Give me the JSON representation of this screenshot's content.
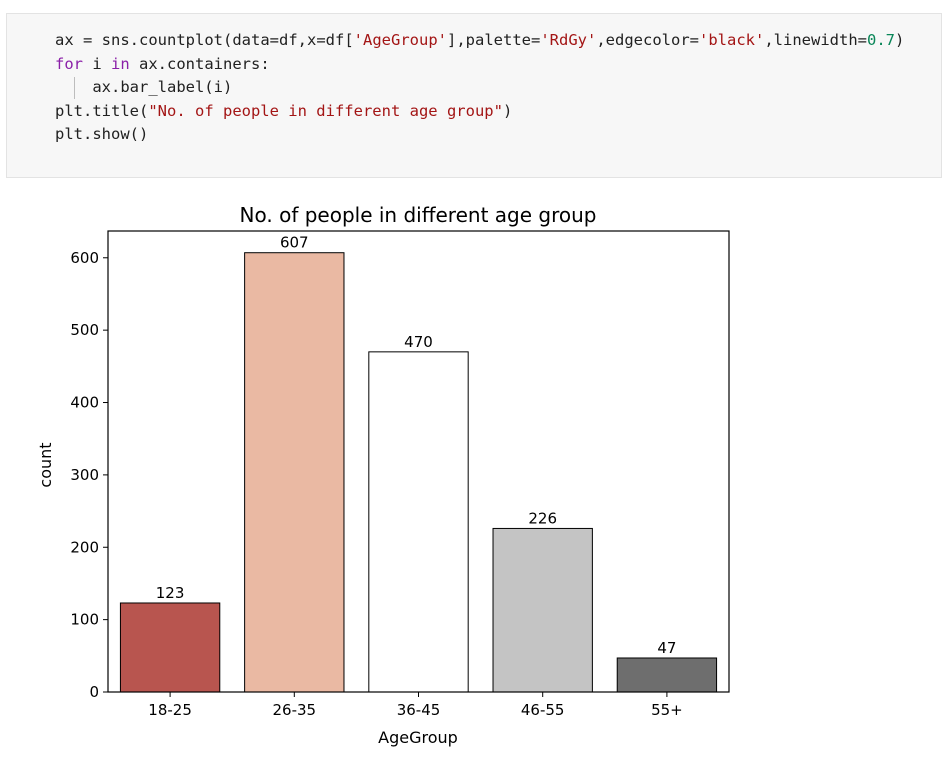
{
  "code_cell": {
    "lines": [
      [
        {
          "t": "ax ",
          "c": "plain"
        },
        {
          "t": "=",
          "c": "plain"
        },
        {
          "t": " sns.countplot(data",
          "c": "plain"
        },
        {
          "t": "=",
          "c": "plain"
        },
        {
          "t": "df,x",
          "c": "plain"
        },
        {
          "t": "=",
          "c": "plain"
        },
        {
          "t": "df[",
          "c": "plain"
        },
        {
          "t": "'AgeGroup'",
          "c": "str"
        },
        {
          "t": "],palette",
          "c": "plain"
        },
        {
          "t": "=",
          "c": "plain"
        },
        {
          "t": "'RdGy'",
          "c": "str"
        },
        {
          "t": ",edgecolor",
          "c": "plain"
        },
        {
          "t": "=",
          "c": "plain"
        },
        {
          "t": "'black'",
          "c": "str"
        },
        {
          "t": ",linewidth",
          "c": "plain"
        },
        {
          "t": "=",
          "c": "plain"
        },
        {
          "t": "0.7",
          "c": "num"
        },
        {
          "t": ")",
          "c": "plain"
        }
      ],
      [
        {
          "t": "for",
          "c": "kw"
        },
        {
          "t": " i ",
          "c": "plain"
        },
        {
          "t": "in",
          "c": "kw"
        },
        {
          "t": " ax.containers:",
          "c": "plain"
        }
      ],
      [
        {
          "t": "    ax.bar_label(i)",
          "c": "plain"
        }
      ],
      [
        {
          "t": "plt.title(",
          "c": "plain"
        },
        {
          "t": "\"No. of people in different age group\"",
          "c": "str"
        },
        {
          "t": ")",
          "c": "plain"
        }
      ],
      [
        {
          "t": "plt.show()",
          "c": "plain"
        }
      ]
    ],
    "colors": {
      "plain": "#212121",
      "kw": "#8b1fa8",
      "str": "#a31515",
      "num": "#098658"
    }
  },
  "chart_data": {
    "type": "bar",
    "title": "No. of people in different age group",
    "xlabel": "AgeGroup",
    "ylabel": "count",
    "categories": [
      "18-25",
      "26-35",
      "36-45",
      "46-55",
      "55+"
    ],
    "values": [
      123,
      607,
      470,
      226,
      47
    ],
    "data_labels": [
      "123",
      "607",
      "470",
      "226",
      "47"
    ],
    "bar_colors": [
      "#b8554f",
      "#eab9a3",
      "#ffffff",
      "#c4c4c4",
      "#6e6e6e"
    ],
    "edgecolor": "#000000",
    "ylim": [
      0,
      637
    ],
    "yticks": [
      0,
      100,
      200,
      300,
      400,
      500,
      600
    ],
    "grid": false
  }
}
